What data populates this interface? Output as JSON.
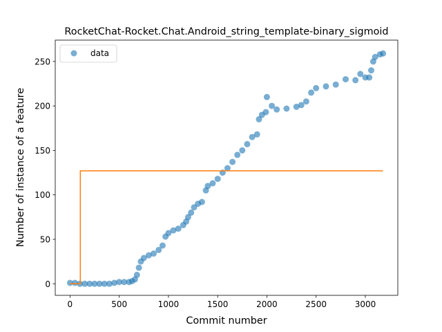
{
  "chart_data": {
    "type": "scatter",
    "title": "RocketChat-Rocket.Chat.Android_string_template-binary_sigmoid",
    "xlabel": "Commit number",
    "ylabel": "Number of instance of a feature",
    "xlim": [
      -150,
      3330
    ],
    "ylim": [
      -13,
      274
    ],
    "xticks": [
      0,
      500,
      1000,
      1500,
      2000,
      2500,
      3000
    ],
    "yticks": [
      0,
      50,
      100,
      150,
      200,
      250
    ],
    "grid": false,
    "legend": {
      "position": "top-left",
      "entries": [
        "data"
      ]
    },
    "colors": {
      "data": "#1f77b4",
      "fit": "#ff7f0e"
    },
    "series": [
      {
        "name": "data",
        "type": "scatter",
        "points": [
          [
            0,
            1
          ],
          [
            50,
            1
          ],
          [
            100,
            0
          ],
          [
            150,
            0
          ],
          [
            200,
            0
          ],
          [
            250,
            0
          ],
          [
            300,
            0
          ],
          [
            350,
            0
          ],
          [
            400,
            0
          ],
          [
            450,
            1
          ],
          [
            500,
            2
          ],
          [
            550,
            2
          ],
          [
            600,
            2
          ],
          [
            630,
            3
          ],
          [
            660,
            5
          ],
          [
            680,
            10
          ],
          [
            700,
            18
          ],
          [
            720,
            25
          ],
          [
            750,
            29
          ],
          [
            800,
            32
          ],
          [
            850,
            34
          ],
          [
            900,
            38
          ],
          [
            940,
            43
          ],
          [
            970,
            53
          ],
          [
            1000,
            57
          ],
          [
            1050,
            60
          ],
          [
            1100,
            62
          ],
          [
            1150,
            66
          ],
          [
            1180,
            70
          ],
          [
            1200,
            75
          ],
          [
            1230,
            80
          ],
          [
            1260,
            86
          ],
          [
            1300,
            90
          ],
          [
            1340,
            92
          ],
          [
            1380,
            105
          ],
          [
            1400,
            110
          ],
          [
            1450,
            113
          ],
          [
            1500,
            118
          ],
          [
            1550,
            125
          ],
          [
            1600,
            130
          ],
          [
            1650,
            137
          ],
          [
            1700,
            145
          ],
          [
            1750,
            150
          ],
          [
            1800,
            157
          ],
          [
            1850,
            165
          ],
          [
            1900,
            168
          ],
          [
            1920,
            185
          ],
          [
            1950,
            190
          ],
          [
            1990,
            193
          ],
          [
            2000,
            210
          ],
          [
            2050,
            200
          ],
          [
            2100,
            196
          ],
          [
            2200,
            197
          ],
          [
            2300,
            199
          ],
          [
            2350,
            201
          ],
          [
            2400,
            205
          ],
          [
            2450,
            215
          ],
          [
            2500,
            220
          ],
          [
            2600,
            222
          ],
          [
            2700,
            224
          ],
          [
            2800,
            230
          ],
          [
            2900,
            229
          ],
          [
            2950,
            236
          ],
          [
            3000,
            232
          ],
          [
            3040,
            232
          ],
          [
            3060,
            240
          ],
          [
            3080,
            250
          ],
          [
            3100,
            255
          ],
          [
            3150,
            258
          ],
          [
            3180,
            259
          ]
        ]
      },
      {
        "name": "",
        "type": "line",
        "points": [
          [
            0,
            0
          ],
          [
            105,
            0
          ],
          [
            105,
            127
          ],
          [
            3180,
            127
          ]
        ]
      }
    ]
  }
}
